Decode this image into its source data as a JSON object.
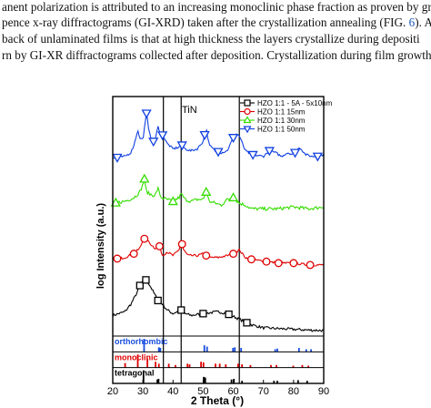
{
  "paper_text": {
    "line1_a": "anent polarization is attributed to an increasing monoclinic phase fraction as proven by gr",
    "line2_a": "pence x-ray diffractograms (GI-XRD) taken after the crystallization annealing (FIG. ",
    "line2_link": "6",
    "line2_b": "). Ar",
    "line3": "back of unlaminated films is that at high thickness the layers crystallize during depositi",
    "line4": "rn by GI-XR diffractograms collected after deposition. Crystallization during film growth le"
  },
  "chart_data": {
    "type": "line",
    "title": "",
    "xlabel": "2 Theta (°)",
    "ylabel": "log Intensity (a.u.)",
    "xlim": [
      20,
      90
    ],
    "xticks": [
      20,
      30,
      40,
      50,
      60,
      70,
      80,
      90
    ],
    "grid": false,
    "legend_position": "top-right",
    "annotation_tin": "TiN",
    "tin_lines": [
      36.8,
      42.7,
      62.0
    ],
    "series": [
      {
        "name": "HZO 1:1 - 5A - 5x10nm",
        "color": "#000000",
        "marker": "square",
        "x": [
          20,
          24,
          26,
          28,
          29,
          30,
          31,
          32,
          33,
          34,
          35,
          36,
          37,
          38,
          40,
          42,
          43,
          44,
          46,
          50,
          55,
          58,
          62,
          66,
          70,
          75,
          80,
          85,
          90
        ],
        "y": [
          0.45,
          0.55,
          0.75,
          1.05,
          1.25,
          1.35,
          1.4,
          1.3,
          1.15,
          1.0,
          0.85,
          0.8,
          0.7,
          0.6,
          0.5,
          0.58,
          0.6,
          0.5,
          0.45,
          0.5,
          0.55,
          0.5,
          0.35,
          0.2,
          0.12,
          0.1,
          0.08,
          0.06,
          0.05
        ],
        "marker_x": [
          29,
          31,
          35,
          42.7,
          50,
          58.5,
          64.5
        ]
      },
      {
        "name": "HZO 1:1 15nm",
        "color": "#e00000",
        "marker": "circle",
        "x": [
          20,
          24,
          27,
          29,
          30,
          31,
          32,
          34,
          35.5,
          36.5,
          38,
          40,
          42,
          42.7,
          43.5,
          45,
          48,
          50,
          52,
          55,
          58,
          60,
          62,
          64,
          66,
          70,
          75,
          80,
          85,
          90
        ],
        "y": [
          1.95,
          2.0,
          2.1,
          2.25,
          2.45,
          2.55,
          2.4,
          2.25,
          2.3,
          2.05,
          2.15,
          2.05,
          2.2,
          2.45,
          2.2,
          2.05,
          2.05,
          2.1,
          2.0,
          2.0,
          2.05,
          2.1,
          2.2,
          2.0,
          1.95,
          1.9,
          1.85,
          1.85,
          1.8,
          1.8
        ],
        "marker_x": [
          21.5,
          27,
          30.5,
          35.5,
          43,
          51,
          60,
          66,
          71,
          75,
          80,
          85.5
        ]
      },
      {
        "name": "HZO 1:1 30nm",
        "color": "#33dd00",
        "marker": "triangle-up",
        "x": [
          20,
          24,
          27,
          29,
          30,
          30.5,
          31,
          32,
          34,
          35,
          36,
          38,
          40,
          42,
          42.7,
          44,
          46,
          48,
          50,
          51,
          52,
          54,
          56,
          58,
          60,
          62,
          64,
          66,
          70,
          75,
          80,
          85,
          90
        ],
        "y": [
          3.45,
          3.5,
          3.6,
          3.75,
          3.95,
          4.1,
          3.8,
          3.7,
          3.65,
          3.85,
          3.6,
          3.55,
          3.5,
          3.6,
          3.7,
          3.55,
          3.5,
          3.55,
          3.55,
          3.75,
          3.5,
          3.45,
          3.4,
          3.55,
          3.6,
          3.45,
          3.4,
          3.3,
          3.3,
          3.3,
          3.35,
          3.3,
          3.35
        ],
        "marker_x": [
          21,
          30.5,
          40,
          51,
          60
        ]
      },
      {
        "name": "HZO 1:1 50nm",
        "color": "#1040e0",
        "marker": "triangle-down",
        "x": [
          20,
          24,
          26,
          27,
          28,
          28.3,
          28.8,
          30,
          31.2,
          31.8,
          33,
          34,
          35,
          36,
          36.8,
          38,
          40,
          42,
          43,
          44,
          46,
          48,
          50,
          51,
          52,
          54,
          56,
          58,
          60,
          61,
          62,
          64,
          66,
          70,
          72,
          74,
          76,
          78,
          80,
          82,
          84,
          86,
          88,
          90
        ],
        "y": [
          4.65,
          4.7,
          4.8,
          5.0,
          5.3,
          5.45,
          5.2,
          5.15,
          5.85,
          5.5,
          5.1,
          5.1,
          5.5,
          5.3,
          5.25,
          5.05,
          4.9,
          4.95,
          5.0,
          4.9,
          4.85,
          4.9,
          5.1,
          5.45,
          5.0,
          4.85,
          4.8,
          4.85,
          5.2,
          5.3,
          5.25,
          4.85,
          4.75,
          4.7,
          4.85,
          4.8,
          4.7,
          4.8,
          4.75,
          4.95,
          4.75,
          4.7,
          4.7,
          4.75
        ],
        "marker_x": [
          21.5,
          31.2,
          33.5,
          36.5,
          43,
          50.5,
          55,
          60,
          66.5,
          72,
          80.5,
          88
        ]
      }
    ],
    "reference_bars": [
      {
        "label": "orthorhombic",
        "color": "#1a4fe0",
        "x": [
          30.4,
          35.3,
          35.8,
          50.4,
          51.3,
          59.9,
          60.5,
          62.6,
          73.9,
          74.6,
          81.8,
          84.2,
          85.8
        ],
        "h": [
          1.0,
          0.35,
          0.3,
          0.5,
          0.4,
          0.3,
          0.35,
          0.3,
          0.2,
          0.25,
          0.3,
          0.2,
          0.2
        ]
      },
      {
        "label": "monoclinic",
        "color": "#e00000",
        "x": [
          24.1,
          28.3,
          31.5,
          34.2,
          35.3,
          38.6,
          40.8,
          44.8,
          45.5,
          49.3,
          50.1,
          54.1,
          55.5,
          57.5,
          61.6,
          62.9,
          65.7,
          72.5,
          74.3,
          79.9,
          82.9,
          84.9
        ],
        "h": [
          0.35,
          1.0,
          0.7,
          0.45,
          0.3,
          0.3,
          0.2,
          0.3,
          0.25,
          0.45,
          0.4,
          0.3,
          0.3,
          0.25,
          0.3,
          0.25,
          0.2,
          0.2,
          0.2,
          0.15,
          0.2,
          0.15
        ]
      },
      {
        "label": "tetragonal",
        "color": "#000000",
        "x": [
          30.2,
          34.8,
          35.2,
          50.2,
          50.7,
          59.4,
          60.2,
          62.9,
          73.5,
          74.6,
          81.5,
          84.5
        ],
        "h": [
          1.0,
          0.3,
          0.35,
          0.5,
          0.45,
          0.3,
          0.35,
          0.2,
          0.2,
          0.2,
          0.25,
          0.2
        ]
      }
    ]
  }
}
